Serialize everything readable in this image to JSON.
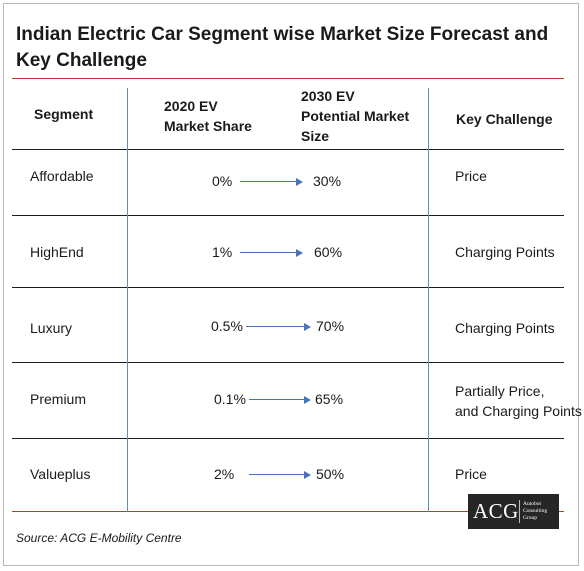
{
  "title": "Indian Electric Car Segment wise Market Size Forecast and Key Challenge",
  "headers": {
    "segment": "Segment",
    "share_2020_line1": "2020 EV",
    "share_2020_line2": "Market Share",
    "size_2030_line1": "2030 EV",
    "size_2030_line2": "Potential Market",
    "size_2030_line3": "Size",
    "challenge": "Key Challenge"
  },
  "rows": [
    {
      "segment": "Affordable",
      "share_2020": "0%",
      "size_2030": "30%",
      "challenge_line1": "Price",
      "challenge_line2": ""
    },
    {
      "segment": "HighEnd",
      "share_2020": "1%",
      "size_2030": "60%",
      "challenge_line1": "Charging Points",
      "challenge_line2": ""
    },
    {
      "segment": "Luxury",
      "share_2020": "0.5%",
      "size_2030": "70%",
      "challenge_line1": "Charging Points",
      "challenge_line2": ""
    },
    {
      "segment": "Premium",
      "share_2020": "0.1%",
      "size_2030": "65%",
      "challenge_line1": "Partially Price,",
      "challenge_line2": "and Charging Points"
    },
    {
      "segment": "Valueplus",
      "share_2020": "2%",
      "size_2030": "50%",
      "challenge_line1": "Price",
      "challenge_line2": ""
    }
  ],
  "source": "Source: ACG E-Mobility Centre",
  "logo": {
    "main": "ACG",
    "sub_line1": "Autobot",
    "sub_line2": "Consulting",
    "sub_line3": "Group"
  },
  "colors": {
    "accent_lines": "#c0392b",
    "arrows": "#4a72b8",
    "logo_bg": "#262626"
  }
}
